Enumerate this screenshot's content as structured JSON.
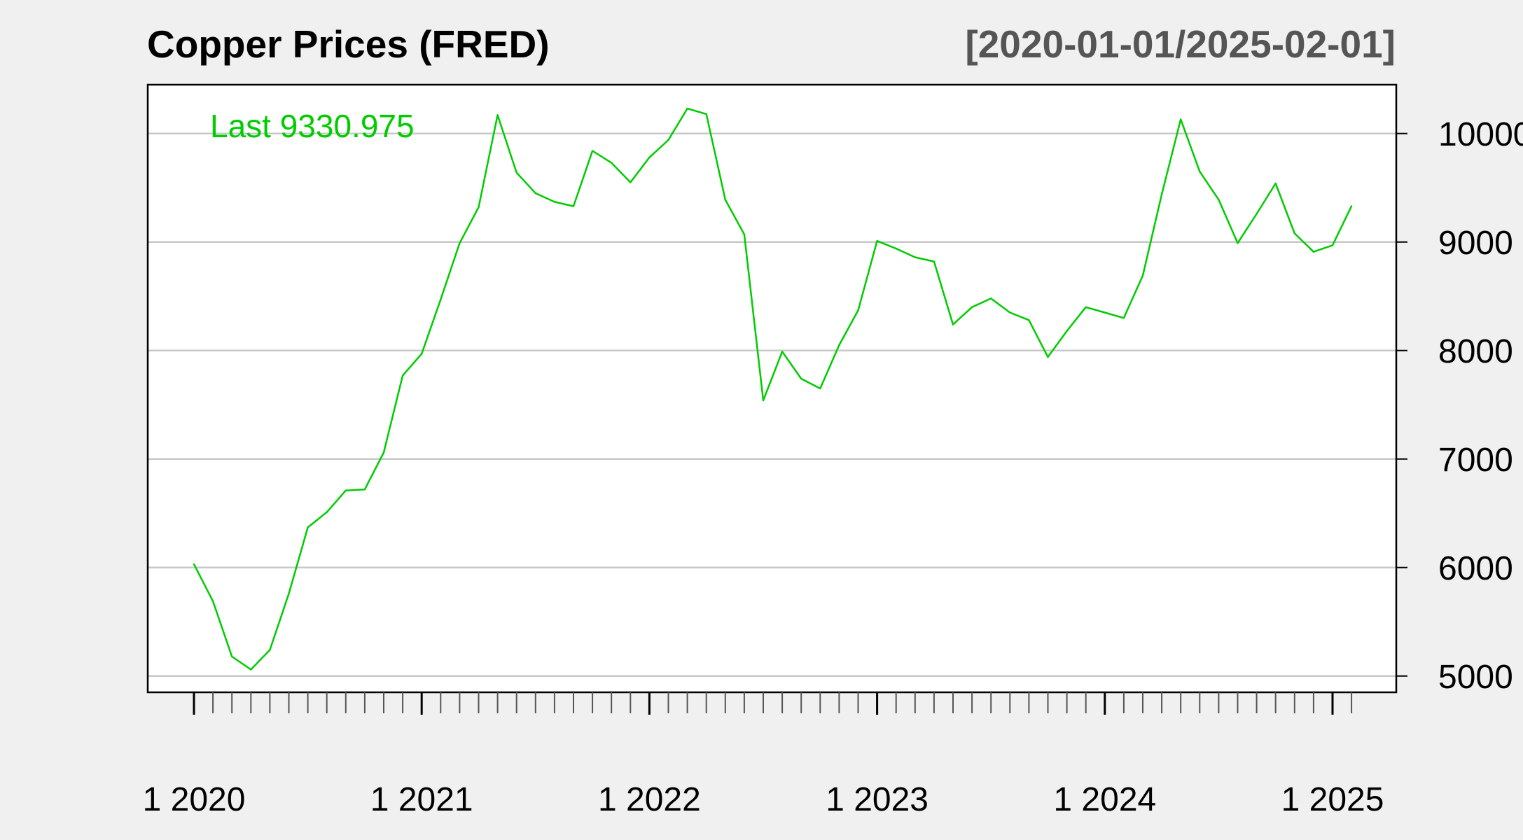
{
  "chart_data": {
    "type": "line",
    "title": "Copper Prices (FRED)",
    "date_range_label": "[2020-01-01/2025-02-01]",
    "last_label": "Last 9330.975",
    "series_color": "#00cc00",
    "grid": true,
    "ylim": [
      4850,
      10450
    ],
    "y_ticks": [
      5000,
      6000,
      7000,
      8000,
      9000,
      10000
    ],
    "y_tick_labels": [
      "5000",
      "6000",
      "7000",
      "8000",
      "9000",
      "10000"
    ],
    "x_tick_labels": [
      "1 2020",
      "1 2021",
      "1 2022",
      "1 2023",
      "1 2024",
      "1 2025"
    ],
    "x": [
      "2020-01-01",
      "2020-02-01",
      "2020-03-01",
      "2020-04-01",
      "2020-05-01",
      "2020-06-01",
      "2020-07-01",
      "2020-08-01",
      "2020-09-01",
      "2020-10-01",
      "2020-11-01",
      "2020-12-01",
      "2021-01-01",
      "2021-02-01",
      "2021-03-01",
      "2021-04-01",
      "2021-05-01",
      "2021-06-01",
      "2021-07-01",
      "2021-08-01",
      "2021-09-01",
      "2021-10-01",
      "2021-11-01",
      "2021-12-01",
      "2022-01-01",
      "2022-02-01",
      "2022-03-01",
      "2022-04-01",
      "2022-05-01",
      "2022-06-01",
      "2022-07-01",
      "2022-08-01",
      "2022-09-01",
      "2022-10-01",
      "2022-11-01",
      "2022-12-01",
      "2023-01-01",
      "2023-02-01",
      "2023-03-01",
      "2023-04-01",
      "2023-05-01",
      "2023-06-01",
      "2023-07-01",
      "2023-08-01",
      "2023-09-01",
      "2023-10-01",
      "2023-11-01",
      "2023-12-01",
      "2024-01-01",
      "2024-02-01",
      "2024-03-01",
      "2024-04-01",
      "2024-05-01",
      "2024-06-01",
      "2024-07-01",
      "2024-08-01",
      "2024-09-01",
      "2024-10-01",
      "2024-11-01",
      "2024-12-01",
      "2025-01-01",
      "2025-02-01"
    ],
    "values": [
      6030,
      5690,
      5180,
      5060,
      5240,
      5760,
      6370,
      6510,
      6710,
      6720,
      7060,
      7770,
      7970,
      8470,
      8990,
      9320,
      10170,
      9640,
      9450,
      9370,
      9330,
      9840,
      9730,
      9550,
      9780,
      9940,
      10230,
      10180,
      9390,
      9070,
      7540,
      7990,
      7740,
      7650,
      8050,
      8370,
      9010,
      8940,
      8860,
      8820,
      8240,
      8400,
      8480,
      8350,
      8280,
      7940,
      8180,
      8400,
      8350,
      8300,
      8690,
      9440,
      10130,
      9650,
      9390,
      8990,
      9260,
      9540,
      9080,
      8910,
      8970,
      9330.975
    ]
  }
}
